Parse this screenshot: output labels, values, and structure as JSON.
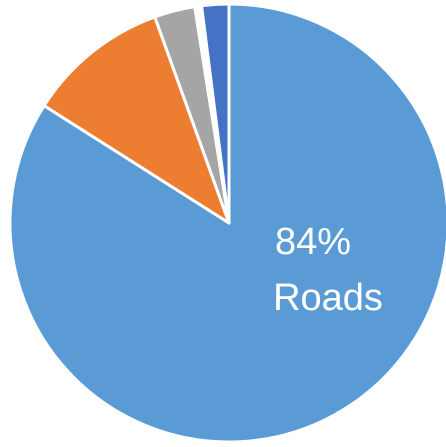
{
  "chart_data": {
    "type": "pie",
    "categories": [
      "Roads",
      null,
      null,
      null,
      null
    ],
    "values": [
      84,
      10.5,
      3,
      0.5,
      2
    ],
    "value_labels": [
      "84%",
      null,
      null,
      null,
      null
    ],
    "colors": [
      "#5b9bd5",
      "#ed7d31",
      "#a5a5a5",
      "#ffffff",
      "#4472c4"
    ]
  }
}
